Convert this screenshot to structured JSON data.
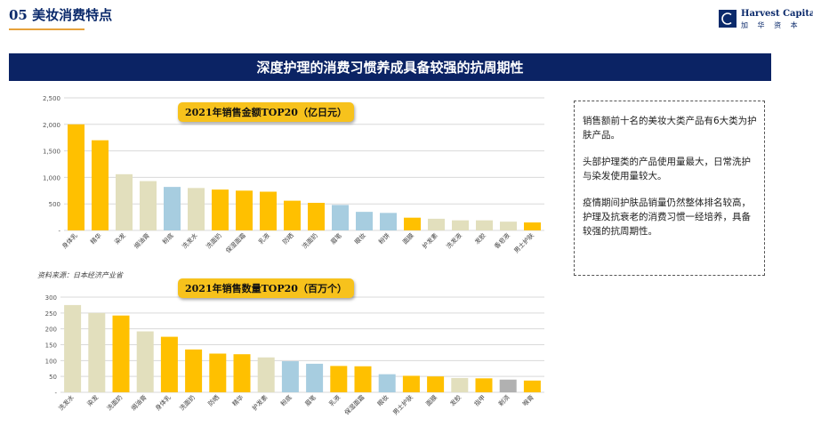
{
  "header": {
    "section_title": "05 美妆消费特点"
  },
  "logo": {
    "name_en": "Harvest Capital",
    "name_cn": "加 华 资 本"
  },
  "banner": {
    "title": "深度护理的消费习惯养成具备较强的抗周期性"
  },
  "source": "资料来源：日本经济产业省",
  "note": {
    "paragraphs": [
      "销售额前十名的美妆大类产品有6大类为护肤产品。",
      "头部护理类的产品使用量最大，日常洗护与染发使用量较大。",
      "疫情期间护肤品销量仍然整体排名较高，护理及抗衰老的消费习惯一经培养，具备较强的抗周期性。"
    ]
  },
  "colors": {
    "yellow": "#ffc000",
    "beige": "#e2dfbd",
    "blue": "#a7cde0",
    "gray": "#b1b1b1"
  },
  "chart_data": [
    {
      "type": "bar",
      "title": "2021年销售金额TOP20（亿日元）",
      "ylim": [
        0,
        2500
      ],
      "yticks": [
        0,
        500,
        1000,
        1500,
        2000,
        2500
      ],
      "ytick_labels": [
        "-",
        "500",
        "1,000",
        "1,500",
        "2,000",
        "2,500"
      ],
      "grid": true,
      "categories": [
        "身体乳",
        "精华",
        "染发",
        "焗油膏",
        "粉底",
        "洗发水",
        "洗面奶",
        "保湿面霜",
        "乳液",
        "防晒",
        "洗面奶",
        "眉笔",
        "眼妆",
        "粉饼",
        "面膜",
        "护发素",
        "洗发液",
        "发胶",
        "香皂液",
        "男士护肤"
      ],
      "values": [
        2000,
        1700,
        1060,
        930,
        820,
        800,
        770,
        750,
        730,
        560,
        520,
        480,
        350,
        330,
        240,
        220,
        190,
        190,
        165,
        150
      ],
      "bar_colors": [
        "yellow",
        "yellow",
        "beige",
        "beige",
        "blue",
        "beige",
        "yellow",
        "yellow",
        "yellow",
        "yellow",
        "yellow",
        "blue",
        "blue",
        "blue",
        "yellow",
        "beige",
        "beige",
        "beige",
        "beige",
        "yellow"
      ]
    },
    {
      "type": "bar",
      "title": "2021年销售数量TOP20（百万个）",
      "ylim": [
        0,
        300
      ],
      "yticks": [
        0,
        50,
        100,
        150,
        200,
        250,
        300
      ],
      "ytick_labels": [
        "-",
        "50",
        "100",
        "150",
        "200",
        "250",
        "300"
      ],
      "grid": true,
      "categories": [
        "洗发水",
        "染发",
        "洗面奶",
        "焗油膏",
        "身体乳",
        "洗面奶",
        "防晒",
        "精华",
        "护发素",
        "粉底",
        "眉笔",
        "乳液",
        "保湿面霜",
        "眼妆",
        "男士护肤",
        "面膜",
        "发胶",
        "指甲",
        "剃须",
        "喉膏"
      ],
      "values": [
        275,
        250,
        242,
        192,
        175,
        135,
        122,
        120,
        110,
        98,
        90,
        83,
        82,
        57,
        52,
        50,
        45,
        44,
        40,
        37
      ],
      "bar_colors": [
        "beige",
        "beige",
        "yellow",
        "beige",
        "yellow",
        "yellow",
        "yellow",
        "yellow",
        "beige",
        "blue",
        "blue",
        "yellow",
        "yellow",
        "blue",
        "yellow",
        "yellow",
        "beige",
        "yellow",
        "gray",
        "yellow"
      ]
    }
  ]
}
